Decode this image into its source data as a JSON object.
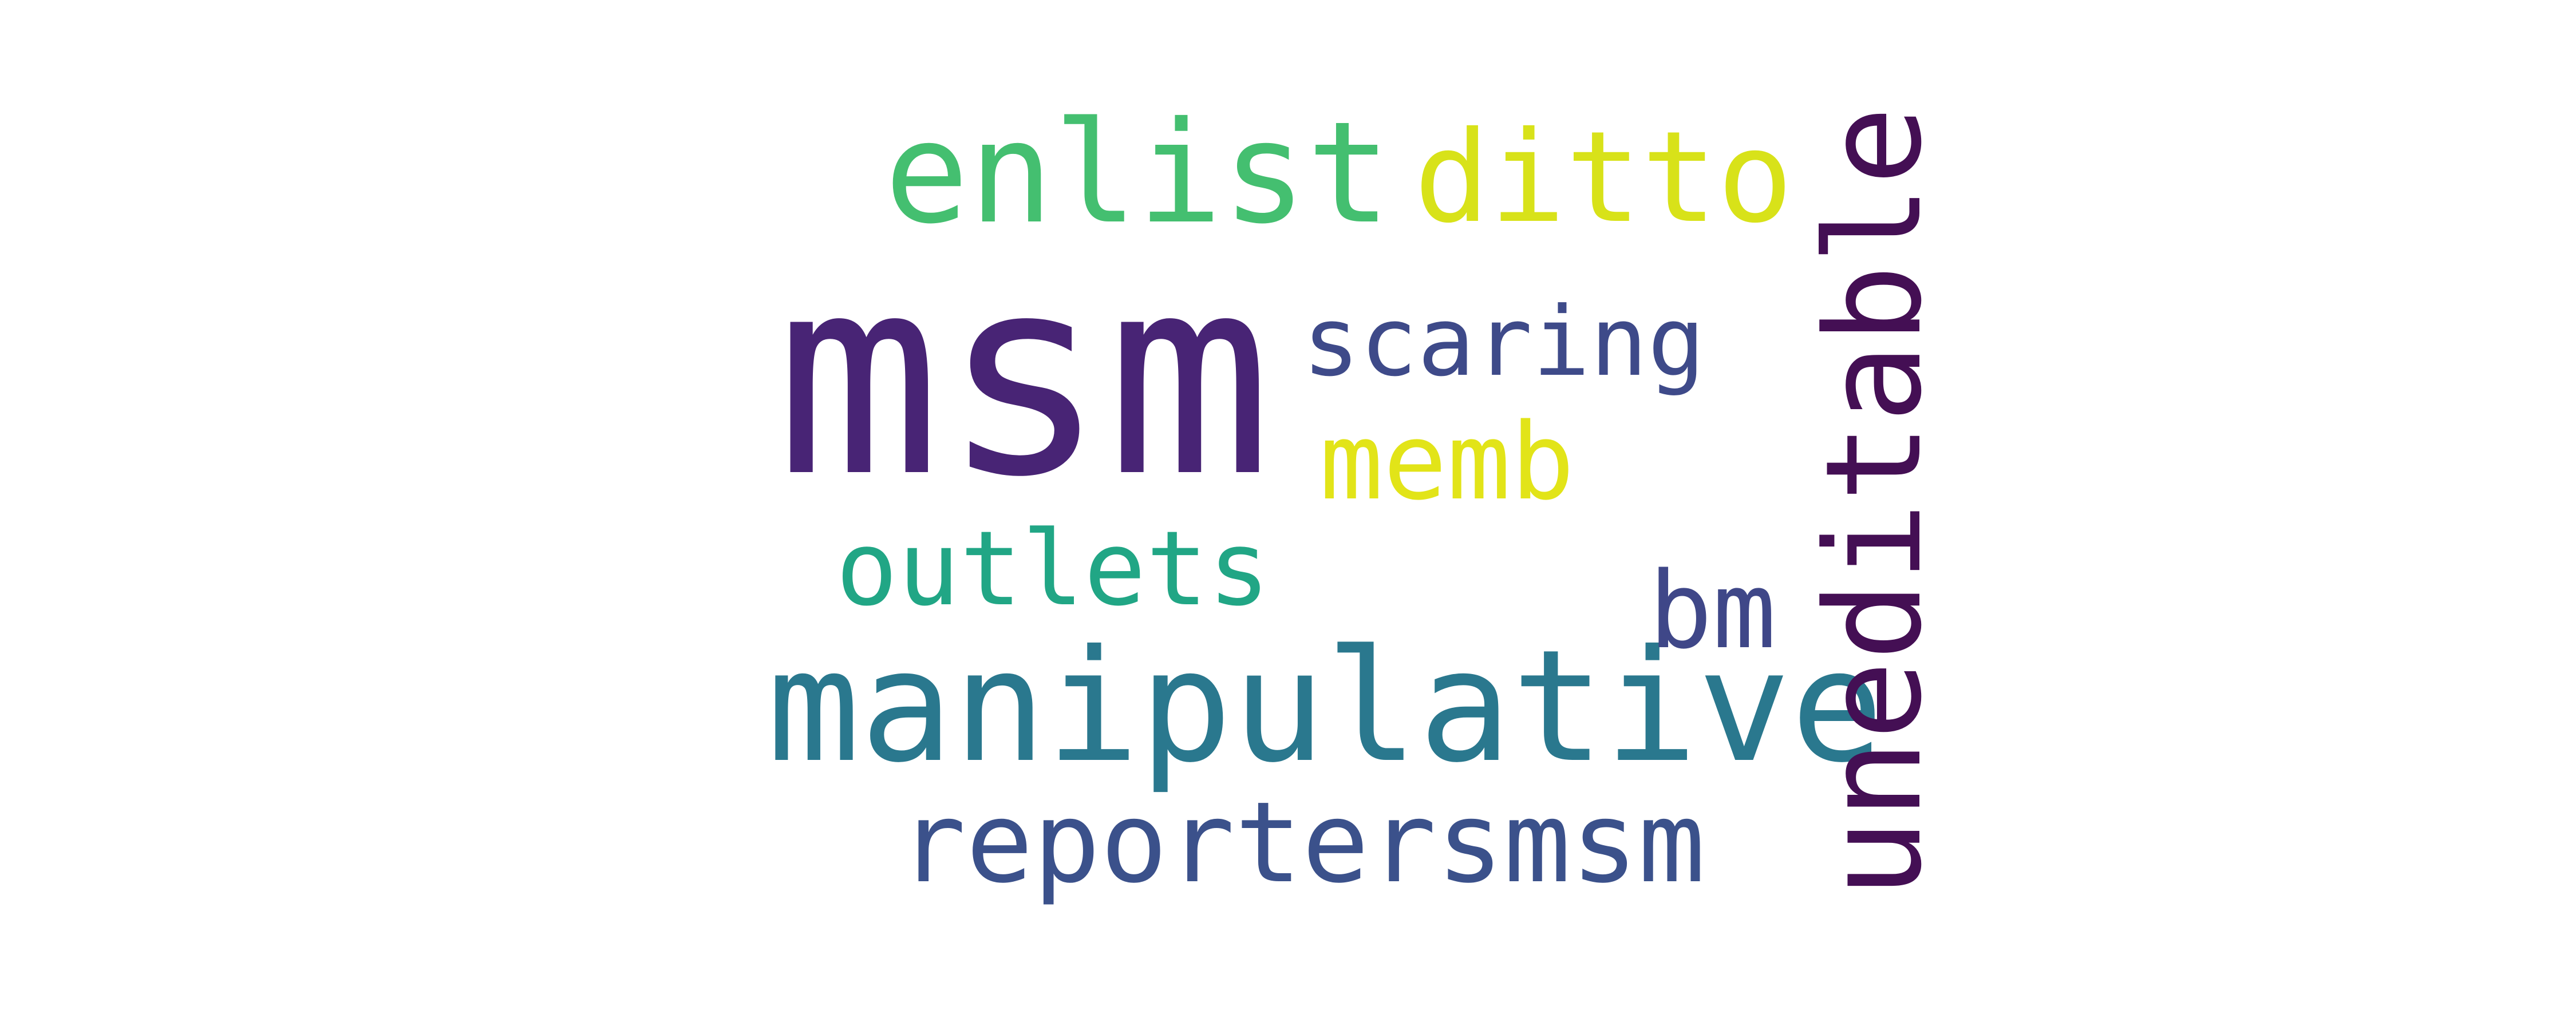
{
  "words": [
    {
      "text": "msm",
      "color": "#482475"
    },
    {
      "text": "manipulative",
      "color": "#2a788e"
    },
    {
      "text": "uneditable",
      "color": "#440f54"
    },
    {
      "text": "enlist",
      "color": "#44bf70"
    },
    {
      "text": "ditto",
      "color": "#d8e219"
    },
    {
      "text": "reportersmsm",
      "color": "#3b518b"
    },
    {
      "text": "scaring",
      "color": "#3e4a89"
    },
    {
      "text": "outlets",
      "color": "#21a685"
    },
    {
      "text": "memb",
      "color": "#e2e418"
    },
    {
      "text": "bm",
      "color": "#3f4788"
    }
  ]
}
